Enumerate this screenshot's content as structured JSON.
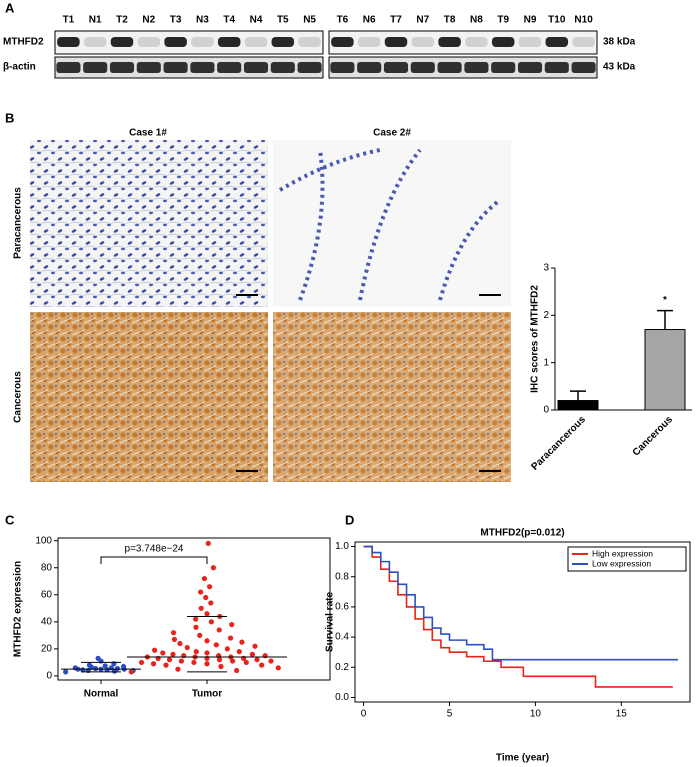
{
  "panels": [
    "A",
    "B",
    "C",
    "D"
  ],
  "blot": {
    "lanes_left": [
      "T1",
      "N1",
      "T2",
      "N2",
      "T3",
      "N3",
      "T4",
      "N4",
      "T5",
      "N5"
    ],
    "lanes_right": [
      "T6",
      "N6",
      "T7",
      "N7",
      "T8",
      "N8",
      "T9",
      "N9",
      "T10",
      "N10"
    ],
    "rows": [
      {
        "name": "MTHFD2",
        "size": "38 kDa"
      },
      {
        "name": "β-actin",
        "size": "43 kDa"
      }
    ]
  },
  "ihc": {
    "cases": [
      "Case 1#",
      "Case 2#"
    ],
    "rows": [
      "Paracancerous",
      "Cancerous"
    ]
  },
  "chart_data": [
    {
      "type": "bar",
      "ylabel": "IHC scores of MTHFD2",
      "categories": [
        "Paracancerous",
        "Cancerous"
      ],
      "values": [
        0.2,
        1.7
      ],
      "errors": [
        0.2,
        0.4
      ],
      "colors": [
        "#000000",
        "#a6a6a6"
      ],
      "ylim": [
        0,
        3
      ],
      "yticks": [
        0,
        1,
        2,
        3
      ],
      "annotation": "*"
    },
    {
      "type": "strip",
      "ylabel": "MTHFD2 expression",
      "annotation": "p=3.748e−24",
      "categories": [
        "Normal",
        "Tumor"
      ],
      "colors": [
        "#2c4fc4",
        "#e8231b"
      ],
      "ylim": [
        -3,
        102
      ],
      "yticks": [
        0,
        20,
        40,
        60,
        80,
        100
      ],
      "series": [
        {
          "name": "Normal",
          "values": [
            3,
            3.5,
            4,
            4,
            4.5,
            4.5,
            5,
            5,
            5,
            5.5,
            5.5,
            6,
            6,
            6.5,
            7,
            7.5,
            8,
            9,
            11,
            13
          ],
          "median": 5,
          "whiskers": [
            3,
            10
          ]
        },
        {
          "name": "Tumor",
          "values": [
            3,
            4,
            5,
            6,
            7,
            8,
            8,
            9,
            9,
            10,
            10,
            10,
            11,
            11,
            11,
            12,
            12,
            12,
            13,
            13,
            13,
            14,
            14,
            14,
            15,
            15,
            15,
            16,
            16,
            17,
            17,
            18,
            18,
            19,
            20,
            21,
            22,
            23,
            24,
            25,
            26,
            27,
            28,
            30,
            32,
            34,
            36,
            38,
            40,
            42,
            44,
            46,
            50,
            54,
            58,
            62,
            66,
            72,
            80,
            98
          ],
          "median": 14,
          "whiskers": [
            3,
            44
          ]
        }
      ]
    },
    {
      "type": "line",
      "step": true,
      "title": "MTHFD2(p=0.012)",
      "xlabel": "Time (year)",
      "ylabel": "Survival rate",
      "xlim": [
        -0.5,
        19
      ],
      "xticks": [
        0,
        5,
        10,
        15
      ],
      "ylim": [
        -0.03,
        1.03
      ],
      "yticks": [
        {
          "value": 0,
          "label": "0.0"
        },
        0.2,
        0.4,
        0.6,
        0.8,
        {
          "value": 1,
          "label": "1.0"
        }
      ],
      "legend": "top-right",
      "series": [
        {
          "name": "High expression",
          "color": "#e8231b",
          "x": [
            0,
            0.5,
            1,
            1.5,
            2,
            2.5,
            3,
            3.5,
            4,
            4.5,
            5,
            6,
            7,
            8,
            9,
            9.3,
            10,
            12,
            13.5,
            18
          ],
          "values": [
            1,
            0.93,
            0.85,
            0.77,
            0.68,
            0.6,
            0.52,
            0.45,
            0.38,
            0.33,
            0.3,
            0.27,
            0.24,
            0.2,
            0.2,
            0.14,
            0.14,
            0.14,
            0.07,
            0.07
          ]
        },
        {
          "name": "Low expression",
          "color": "#2c4fc4",
          "x": [
            0,
            0.5,
            1,
            1.5,
            2,
            2.5,
            3,
            3.5,
            4,
            4.5,
            5,
            5.5,
            6,
            7,
            7.5,
            8,
            10,
            18.3
          ],
          "values": [
            1,
            0.96,
            0.9,
            0.83,
            0.75,
            0.68,
            0.6,
            0.53,
            0.46,
            0.42,
            0.38,
            0.38,
            0.35,
            0.32,
            0.25,
            0.25,
            0.25,
            0.25
          ]
        }
      ]
    }
  ]
}
